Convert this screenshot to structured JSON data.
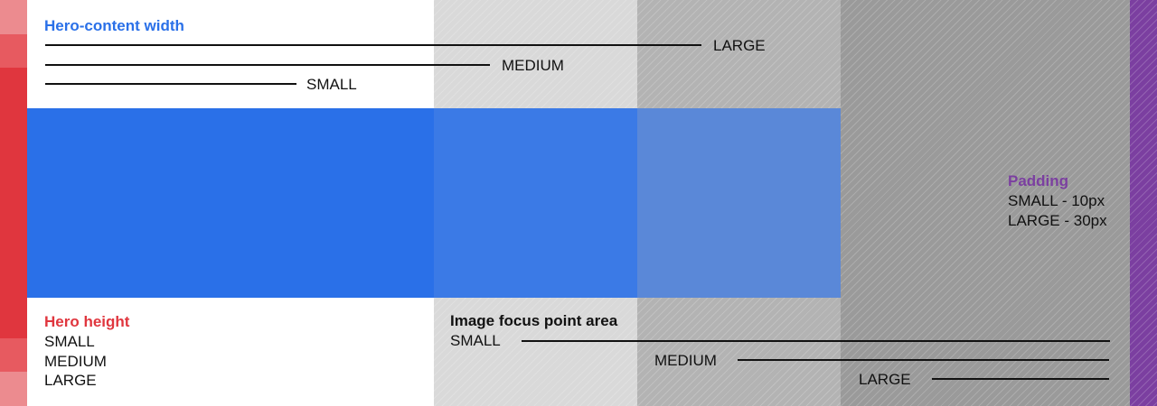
{
  "colors": {
    "blue": "#2a70e8",
    "red": "#e0363e",
    "purple": "#7b3fa0",
    "text": "#111111"
  },
  "hero_content_width": {
    "title": "Hero-content width",
    "large": "LARGE",
    "medium": "MEDIUM",
    "small": "SMALL"
  },
  "padding": {
    "title": "Padding",
    "small": "SMALL - 10px",
    "large": "LARGE - 30px"
  },
  "hero_height": {
    "title": "Hero height",
    "small": "SMALL",
    "medium": "MEDIUM",
    "large": "LARGE"
  },
  "image_focus": {
    "title": "Image focus point area",
    "small": "SMALL",
    "medium": "MEDIUM",
    "large": "LARGE"
  }
}
